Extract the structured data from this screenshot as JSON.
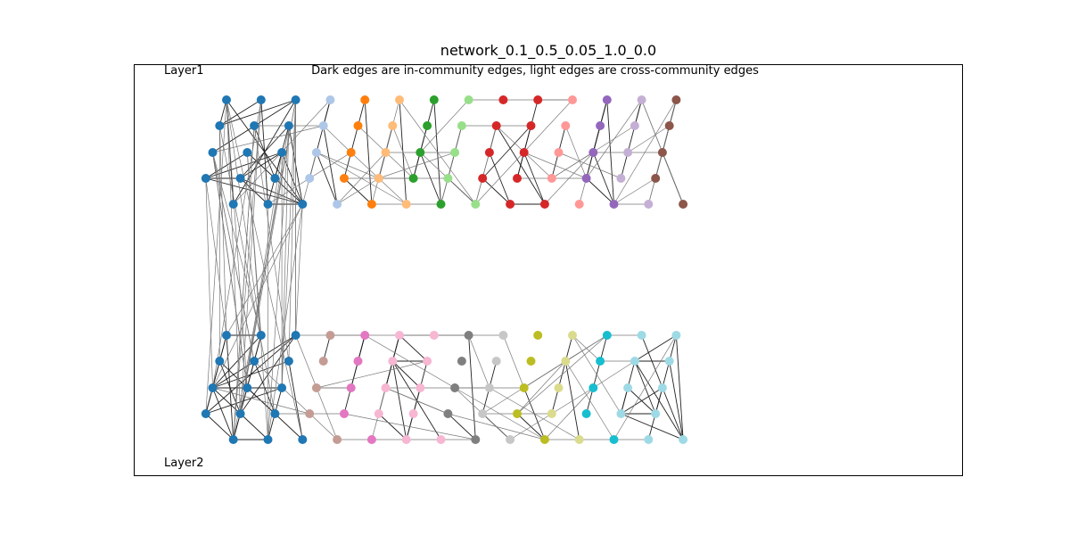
{
  "figure": {
    "title": "network_0.1_0.5_0.05_1.0_0.0",
    "subtitle": "Dark edges are in-community edges, light edges are cross-community edges",
    "layer_labels": [
      "Layer1",
      "Layer2"
    ]
  },
  "legend_semantics": {
    "in_community_edge_color": "#222222",
    "cross_community_edge_color": "#777777"
  },
  "palette": [
    "#1f77b4",
    "#aec7e8",
    "#ff7f0e",
    "#ffbb78",
    "#2ca02c",
    "#98df8a",
    "#d62728",
    "#ff9896",
    "#9467bd",
    "#c5b0d5",
    "#8c564b",
    "#c49c94",
    "#e377c2",
    "#f7b6d2",
    "#7f7f7f",
    "#c7c7c7",
    "#bcbd22",
    "#dbdb8d",
    "#17becf",
    "#9edae5"
  ],
  "layers": [
    {
      "name": "Layer1",
      "communities": [
        {
          "color": "#1f77b4",
          "columns": 3
        },
        {
          "color": "#aec7e8",
          "columns": 1
        },
        {
          "color": "#ff7f0e",
          "columns": 1
        },
        {
          "color": "#ffbb78",
          "columns": 1
        },
        {
          "color": "#2ca02c",
          "columns": 1
        },
        {
          "color": "#98df8a",
          "columns": 1
        },
        {
          "color": "#d62728",
          "columns": 2
        },
        {
          "color": "#ff9896",
          "columns": 1
        },
        {
          "color": "#9467bd",
          "columns": 1
        },
        {
          "color": "#c5b0d5",
          "columns": 1
        },
        {
          "color": "#8c564b",
          "columns": 1
        }
      ]
    },
    {
      "name": "Layer2",
      "communities": [
        {
          "color": "#1f77b4",
          "columns": 3
        },
        {
          "color": "#c49c94",
          "columns": 1
        },
        {
          "color": "#e377c2",
          "columns": 1
        },
        {
          "color": "#f7b6d2",
          "columns": 2
        },
        {
          "color": "#7f7f7f",
          "columns": 1
        },
        {
          "color": "#c7c7c7",
          "columns": 1
        },
        {
          "color": "#bcbd22",
          "columns": 1
        },
        {
          "color": "#dbdb8d",
          "columns": 1
        },
        {
          "color": "#17becf",
          "columns": 1
        },
        {
          "color": "#9edae5",
          "columns": 2
        }
      ]
    }
  ]
}
